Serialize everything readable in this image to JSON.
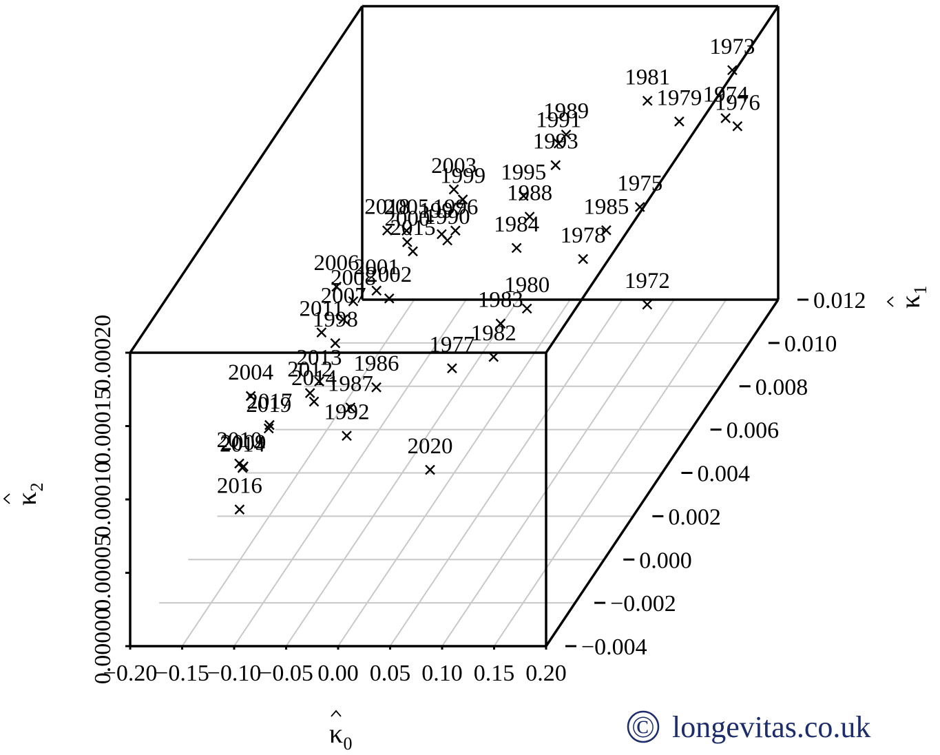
{
  "chart_data": {
    "type": "scatter",
    "projection": "3d",
    "title": "",
    "axes": {
      "x": {
        "label": "κ̂0",
        "label_symbol": "κ",
        "label_sub": "0",
        "range": [
          -0.2,
          0.2
        ],
        "ticks": [
          "−0.20",
          "−0.15",
          "−0.10",
          "−0.05",
          "0.00",
          "0.05",
          "0.10",
          "0.15",
          "0.20"
        ]
      },
      "y": {
        "label": "κ̂1",
        "label_symbol": "κ",
        "label_sub": "1",
        "range": [
          -0.004,
          0.012
        ],
        "ticks": [
          "−0.004",
          "−0.002",
          "0.000",
          "0.002",
          "0.004",
          "0.006",
          "0.008",
          "0.010",
          "0.012"
        ]
      },
      "z": {
        "label": "κ̂2",
        "label_symbol": "κ",
        "label_sub": "2",
        "range": [
          0.0,
          0.0002
        ],
        "ticks": [
          "0.00000",
          "0.00005",
          "0.00010",
          "0.00015",
          "0.00020"
        ]
      }
    },
    "grid": true,
    "marker": "x",
    "points": [
      {
        "label": "1973",
        "x": 0.181,
        "y": 0.0102,
        "z": 0.000183
      },
      {
        "label": "1981",
        "x": 0.105,
        "y": 0.0098,
        "z": 0.000168
      },
      {
        "label": "1989",
        "x": 0.024,
        "y": 0.01,
        "z": 0.000142
      },
      {
        "label": "1991",
        "x": 0.014,
        "y": 0.0102,
        "z": 0.000133
      },
      {
        "label": "1993",
        "x": 0.025,
        "y": 0.0092,
        "z": 0.000133
      },
      {
        "label": "1979",
        "x": 0.13,
        "y": 0.0102,
        "z": 0.000148
      },
      {
        "label": "1974",
        "x": 0.162,
        "y": 0.0111,
        "z": 0.000137
      },
      {
        "label": "1976",
        "x": 0.172,
        "y": 0.0112,
        "z": 0.00013
      },
      {
        "label": "1975",
        "x": 0.134,
        "y": 0.0072,
        "z": 0.000134
      },
      {
        "label": "1985",
        "x": 0.11,
        "y": 0.0066,
        "z": 0.000127
      },
      {
        "label": "1978",
        "x": 0.11,
        "y": 0.005,
        "z": 0.000131
      },
      {
        "label": "1972",
        "x": 0.201,
        "y": 0.0029,
        "z": 0.000131
      },
      {
        "label": "1995",
        "x": -0.003,
        "y": 0.009,
        "z": 0.000115
      },
      {
        "label": "1988",
        "x": 0.021,
        "y": 0.0077,
        "z": 0.00012
      },
      {
        "label": "1984",
        "x": 0.021,
        "y": 0.0068,
        "z": 0.000112
      },
      {
        "label": "1980",
        "x": 0.07,
        "y": 0.004,
        "z": 0.000112
      },
      {
        "label": "1983",
        "x": 0.06,
        "y": 0.0029,
        "z": 0.000118
      },
      {
        "label": "1982",
        "x": 0.07,
        "y": 0.0017,
        "z": 0.000113
      },
      {
        "label": "1977",
        "x": 0.044,
        "y": 0.0007,
        "z": 0.00012
      },
      {
        "label": "1990",
        "x": -0.04,
        "y": 0.0064,
        "z": 0.000123
      },
      {
        "label": "2003",
        "x": -0.077,
        "y": 0.0095,
        "z": 0.000112
      },
      {
        "label": "1999",
        "x": -0.06,
        "y": 0.0089,
        "z": 0.000114
      },
      {
        "label": "1997",
        "x": -0.058,
        "y": 0.0073,
        "z": 0.000114
      },
      {
        "label": "1996",
        "x": -0.049,
        "y": 0.0076,
        "z": 0.000112
      },
      {
        "label": "2005",
        "x": -0.096,
        "y": 0.0076,
        "z": 0.000112
      },
      {
        "label": "2015",
        "x": -0.069,
        "y": 0.0061,
        "z": 0.00012
      },
      {
        "label": "2000",
        "x": -0.087,
        "y": 0.007,
        "z": 0.000113
      },
      {
        "label": "2018",
        "x": -0.109,
        "y": 0.0072,
        "z": 0.000118
      },
      {
        "label": "2001",
        "x": -0.09,
        "y": 0.0051,
        "z": 0.000108
      },
      {
        "label": "2002",
        "x": -0.068,
        "y": 0.0044,
        "z": 0.000113
      },
      {
        "label": "2006",
        "x": -0.116,
        "y": 0.0042,
        "z": 0.000124
      },
      {
        "label": "2008",
        "x": -0.097,
        "y": 0.004,
        "z": 0.000117
      },
      {
        "label": "2011",
        "x": -0.115,
        "y": 0.0031,
        "z": 0.000109
      },
      {
        "label": "2007",
        "x": -0.094,
        "y": 0.0031,
        "z": 0.000118
      },
      {
        "label": "1998",
        "x": -0.092,
        "y": 0.0024,
        "z": 0.000112
      },
      {
        "label": "2013",
        "x": -0.081,
        "y": 0.0005,
        "z": 0.000114
      },
      {
        "label": "2012",
        "x": -0.087,
        "y": 0.0003,
        "z": 0.000109
      },
      {
        "label": "2014",
        "x": -0.072,
        "y": -0.0005,
        "z": 0.000115
      },
      {
        "label": "1987",
        "x": -0.037,
        "y": -0.0005,
        "z": 0.000111
      },
      {
        "label": "2017",
        "x": -0.112,
        "y": -0.0007,
        "z": 0.000102
      },
      {
        "label": "2019",
        "x": -0.103,
        "y": -0.0014,
        "z": 0.00011
      },
      {
        "label": "1992",
        "x": -0.028,
        "y": -0.0014,
        "z": 0.000105
      },
      {
        "label": "1986",
        "x": -0.026,
        "y": 0.0005,
        "z": 0.00011
      },
      {
        "label": "2004",
        "x": -0.144,
        "y": 0.0003,
        "z": 0.000107
      },
      {
        "label": "2020",
        "x": 0.041,
        "y": -0.0006,
        "z": 7e-05
      },
      {
        "label": "2010",
        "x": -0.155,
        "y": 0.0003,
        "z": 6.1e-05
      },
      {
        "label": "2009",
        "x": -0.151,
        "y": 0.0003,
        "z": 5.9e-05
      },
      {
        "label": "2014",
        "x": -0.152,
        "y": 0.0003,
        "z": 5.8e-05
      },
      {
        "label": "2016",
        "x": -0.145,
        "y": -0.0004,
        "z": 4e-05
      }
    ]
  },
  "credit": {
    "symbol": "©",
    "text": "longevitas.co.uk",
    "color": "#1d2d6b"
  }
}
